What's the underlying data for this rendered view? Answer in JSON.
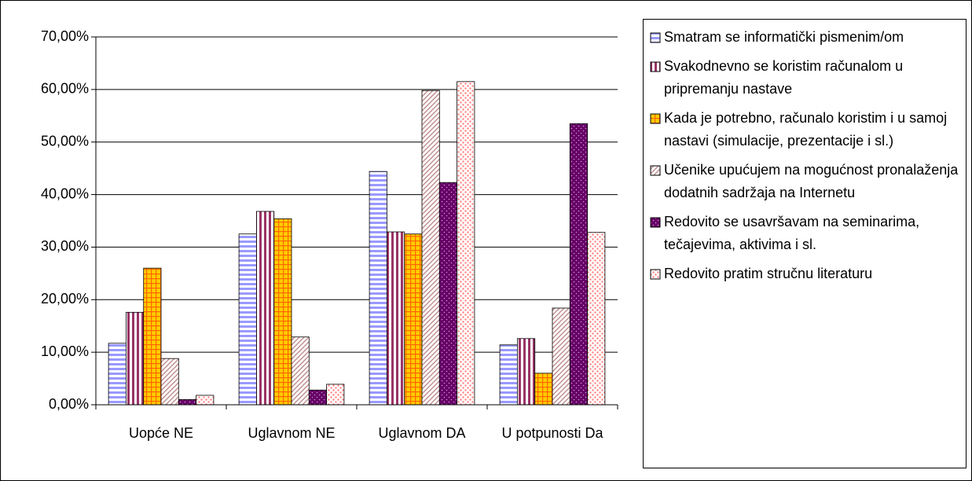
{
  "chart_data": {
    "type": "bar",
    "categories": [
      "Uopće NE",
      "Uglavnom NE",
      "Uglavnom DA",
      "U potpunosti Da"
    ],
    "series": [
      {
        "name": "Smatram se informatički pismenim/om",
        "color": "#9999ff",
        "values": [
          11.7,
          32.5,
          44.4,
          11.4
        ]
      },
      {
        "name": "Svakodnevno se koristim računalom u pripremanju nastave",
        "color": "#993366",
        "values": [
          17.6,
          36.8,
          32.9,
          12.6
        ]
      },
      {
        "name": "Kada je potrebno, računalo koristim i u samoj nastavi (simulacije, prezentacije i sl.)",
        "color": "#ffcc00",
        "values": [
          26.0,
          35.4,
          32.5,
          6.0
        ]
      },
      {
        "name": "Učenike upućujem na mogućnost pronalaženja dodatnih sadržaja na Internetu",
        "color": "#c09090",
        "values": [
          8.8,
          12.9,
          59.8,
          18.4
        ]
      },
      {
        "name": "Redovito se usavršavam na seminarima, tečajevima, aktivima i sl.",
        "color": "#660066",
        "values": [
          1.0,
          2.8,
          42.3,
          53.5
        ]
      },
      {
        "name": "Redovito pratim stručnu literaturu",
        "color": "#ff8080",
        "values": [
          1.8,
          3.9,
          61.5,
          32.8
        ]
      }
    ],
    "ylim": [
      0,
      70
    ],
    "yticks": [
      {
        "value": 0,
        "label": "0,00%"
      },
      {
        "value": 10,
        "label": "10,00%"
      },
      {
        "value": 20,
        "label": "20,00%"
      },
      {
        "value": 30,
        "label": "30,00%"
      },
      {
        "value": 40,
        "label": "40,00%"
      },
      {
        "value": 50,
        "label": "50,00%"
      },
      {
        "value": 60,
        "label": "60,00%"
      },
      {
        "value": 70,
        "label": "70,00%"
      }
    ],
    "grid": true
  }
}
